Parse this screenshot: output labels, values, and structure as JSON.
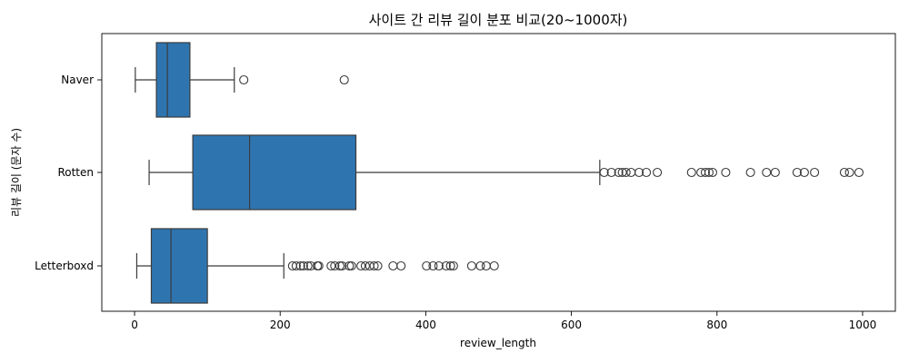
{
  "chart_data": {
    "type": "box",
    "orientation": "horizontal",
    "title": "사이트 간 리뷰 길이 분포 비교(20~1000자)",
    "xlabel": "review_length",
    "ylabel": "리뷰 길이 (문자 수)",
    "xlim": [
      -45,
      1045
    ],
    "xticks": [
      0,
      200,
      400,
      600,
      800,
      1000
    ],
    "categories": [
      "Naver",
      "Rotten",
      "Letterboxd"
    ],
    "grid": false,
    "box_color": "#2e75b0",
    "line_color": "#3b3b3b",
    "series": [
      {
        "name": "Naver",
        "whisker_low": 1,
        "q1": 30,
        "median": 45,
        "q3": 76,
        "whisker_high": 137,
        "outliers": [
          150,
          288
        ]
      },
      {
        "name": "Rotten",
        "whisker_low": 20,
        "q1": 80,
        "median": 158,
        "q3": 304,
        "whisker_high": 639,
        "outliers": [
          645,
          655,
          665,
          670,
          675,
          682,
          693,
          703,
          718,
          765,
          778,
          784,
          789,
          794,
          812,
          846,
          868,
          880,
          910,
          920,
          934,
          975,
          982,
          995
        ]
      },
      {
        "name": "Letterboxd",
        "whisker_low": 3,
        "q1": 23,
        "median": 50,
        "q3": 100,
        "whisker_high": 205,
        "outliers": [
          217,
          222,
          228,
          232,
          238,
          242,
          251,
          253,
          270,
          275,
          282,
          285,
          295,
          298,
          311,
          317,
          323,
          329,
          334,
          355,
          366,
          401,
          410,
          418,
          428,
          434,
          438,
          463,
          475,
          483,
          494
        ]
      }
    ]
  }
}
